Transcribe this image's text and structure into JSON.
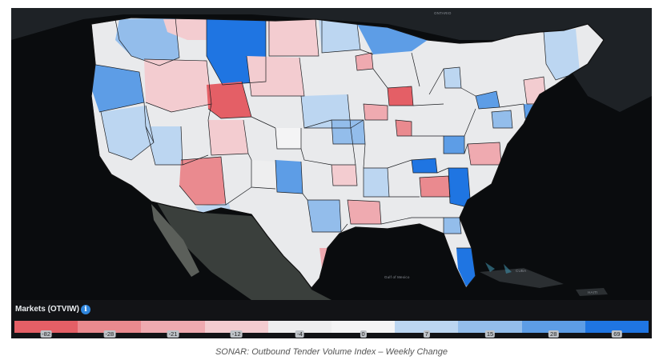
{
  "map": {
    "geo_labels": [
      "ONTARIO",
      "Gulf of Mexico",
      "CUBA",
      "HAITI"
    ]
  },
  "legend": {
    "title": "Markets (OTVIW)",
    "info_icon": "info-icon",
    "segments": [
      {
        "label": "-82",
        "color": "#e45f66"
      },
      {
        "label": "-28",
        "color": "#ea8a8f"
      },
      {
        "label": "-21",
        "color": "#efaab0"
      },
      {
        "label": "-12",
        "color": "#f3ccd0"
      },
      {
        "label": "-4",
        "color": "#eeeeef"
      },
      {
        "label": "0",
        "color": "#f4f4f5"
      },
      {
        "label": "7",
        "color": "#bcd6f1"
      },
      {
        "label": "15",
        "color": "#93bdeb"
      },
      {
        "label": "28",
        "color": "#5d9de6"
      },
      {
        "label": "69",
        "color": "#1f75e2"
      }
    ]
  },
  "caption": "SONAR: Outbound Tender Volume Index – Weekly Change"
}
